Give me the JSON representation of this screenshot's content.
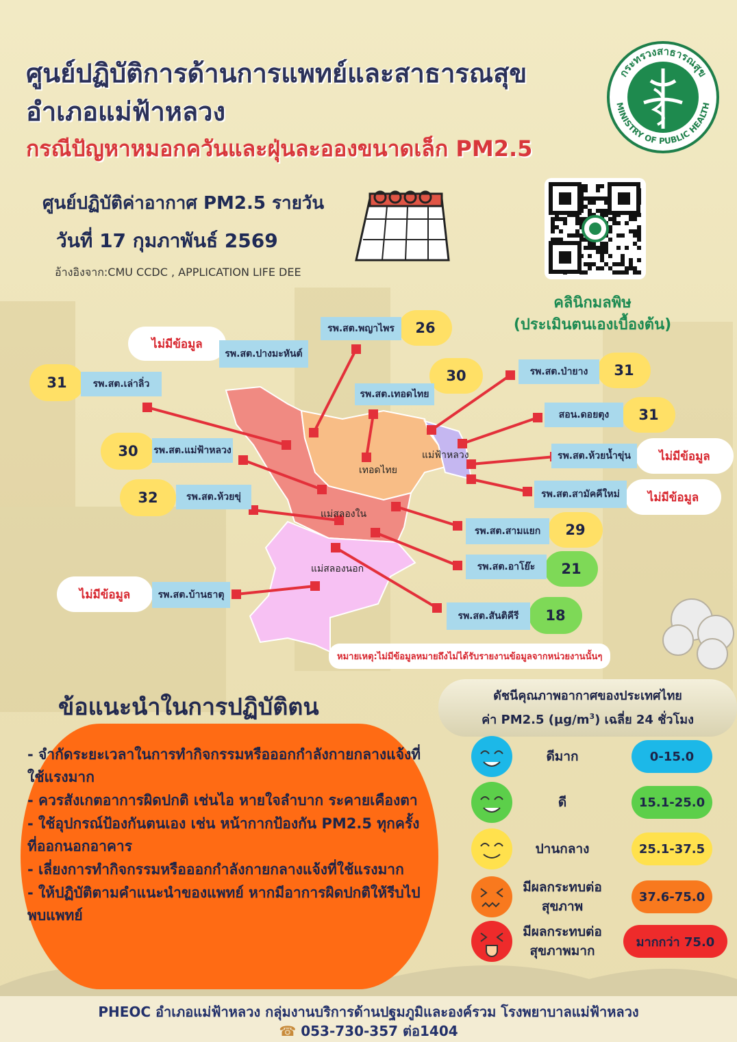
{
  "header": {
    "title_line1": "ศูนย์ปฏิบัติการด้านการแพทย์และสาธารณสุข",
    "title_line2": "อำเภอแม่ฟ้าหลวง",
    "subtitle": "กรณีปัญหาหมอกควันและฝุ่นละอองขนาดเล็ก PM2.5",
    "logo_top": "กระทรวงสาธารณสุข",
    "logo_bottom": "MINISTRY OF PUBLIC HEALTH"
  },
  "report": {
    "heading": "ศูนย์ปฏิบัติค่าอากาศ PM2.5 รายวัน",
    "date": "วันที่ 17 กุมภาพันธ์ 2569",
    "source": "อ้างอิงจาก:CMU CCDC , APPLICATION LIFE DEE"
  },
  "qr": {
    "caption_line1": "คลินิกมลพิษ",
    "caption_line2": "(ประเมินตนเองเบื้องต้น)"
  },
  "map": {
    "districts": [
      "เทอดไทย",
      "แม่ฟ้าหลวง",
      "แม่สลองใน",
      "แม่สลองนอก"
    ],
    "stations": [
      {
        "name": "รพ.สต.พญาไพร",
        "value": 26,
        "color": "#ffe066"
      },
      {
        "name": "รพ.สต.ปางมะหันต์",
        "status": "ไม่มีข้อมูล"
      },
      {
        "name": "รพ.สต.เล่าลิ่ว",
        "value": 31,
        "color": "#ffe066"
      },
      {
        "name": "รพ.สต.เทอดไทย",
        "value": 30,
        "color": "#ffe066"
      },
      {
        "name": "รพ.สต.ป่ายาง",
        "value": 31,
        "color": "#ffe066"
      },
      {
        "name": "สอน.ดอยตุง",
        "value": 31,
        "color": "#ffe066"
      },
      {
        "name": "รพ.สต.ห้วยน้ำขุ่น",
        "status": "ไม่มีข้อมูล"
      },
      {
        "name": "รพ.สต.สามัคคีใหม่",
        "status": "ไม่มีข้อมูล"
      },
      {
        "name": "รพ.สต.แม่ฟ้าหลวง",
        "value": 30,
        "color": "#ffe066"
      },
      {
        "name": "รพ.สต.ห้วยขุ่",
        "value": 32,
        "color": "#ffe066"
      },
      {
        "name": "รพ.สต.สามแยก",
        "value": 29,
        "color": "#ffe066"
      },
      {
        "name": "รพ.สต.อาโย๊ะ",
        "value": 21,
        "color": "#7ed957"
      },
      {
        "name": "รพ.สต.สันติคีรี",
        "value": 18,
        "color": "#7ed957"
      },
      {
        "name": "รพ.สต.บ้านธาตุ",
        "status": "ไม่มีข้อมูล"
      }
    ],
    "note": "หมายเหตุ:ไม่มีข้อมูลหมายถึงไม่ได้รับรายงานข้อมูลจากหน่วยงานนั้นๆ"
  },
  "advice": {
    "heading": "ข้อแนะนำในการปฏิบัติตน",
    "items": [
      "- จำกัดระยะเวลาในการทำกิจกรรมหรือออกกำลังกายกลางแจ้งที่ใช้แรงมาก",
      "- ควรสังเกตอาการผิดปกติ เช่นไอ หายใจลำบาก ระคายเคืองตา",
      "- ใช้อุปกรณ์ป้องกันตนเอง เช่น หน้ากากป้องกัน PM2.5 ทุกครั้ง ที่ออกนอกอาคาร",
      "- เลี่ยงการทำกิจกรรมหรือออกกำลังกายกลางแจ้งที่ใช้แรงมาก",
      "- ให้ปฏิบัติตามคำแนะนำของแพทย์ หากมีอาการผิดปกติให้รีบไปพบแพทย์"
    ]
  },
  "aqi": {
    "title_line1": "ดัชนีคุณภาพอากาศของประเทศไทย",
    "title_line2_pre": "ค่า PM2.5 (µg/m",
    "title_line2_sup": "3",
    "title_line2_post": ") เฉลี่ย 24 ชั่วโมง",
    "levels": [
      {
        "label_lines": [
          "ดีมาก"
        ],
        "range": "0-15.0",
        "color": "#1cb8e8"
      },
      {
        "label_lines": [
          "ดี"
        ],
        "range": "15.1-25.0",
        "color": "#5ccf4a"
      },
      {
        "label_lines": [
          "ปานกลาง"
        ],
        "range": "25.1-37.5",
        "color": "#ffe14d"
      },
      {
        "label_lines": [
          "มีผลกระทบต่อ",
          "สุขภาพ"
        ],
        "range": "37.6-75.0",
        "color": "#f8791e"
      },
      {
        "label_lines": [
          "มีผลกระทบต่อ",
          "สุขภาพมาก"
        ],
        "range": "มากกว่า 75.0",
        "color": "#ee2b2b"
      }
    ]
  },
  "footer": {
    "org": "PHEOC อำเภอแม่ฟ้าหลวง กลุ่มงานบริการด้านปฐมภูมิและองค์รวม โรงพยาบาลแม่ฟ้าหลวง",
    "phone": "053-730-357 ต่อ1404"
  }
}
